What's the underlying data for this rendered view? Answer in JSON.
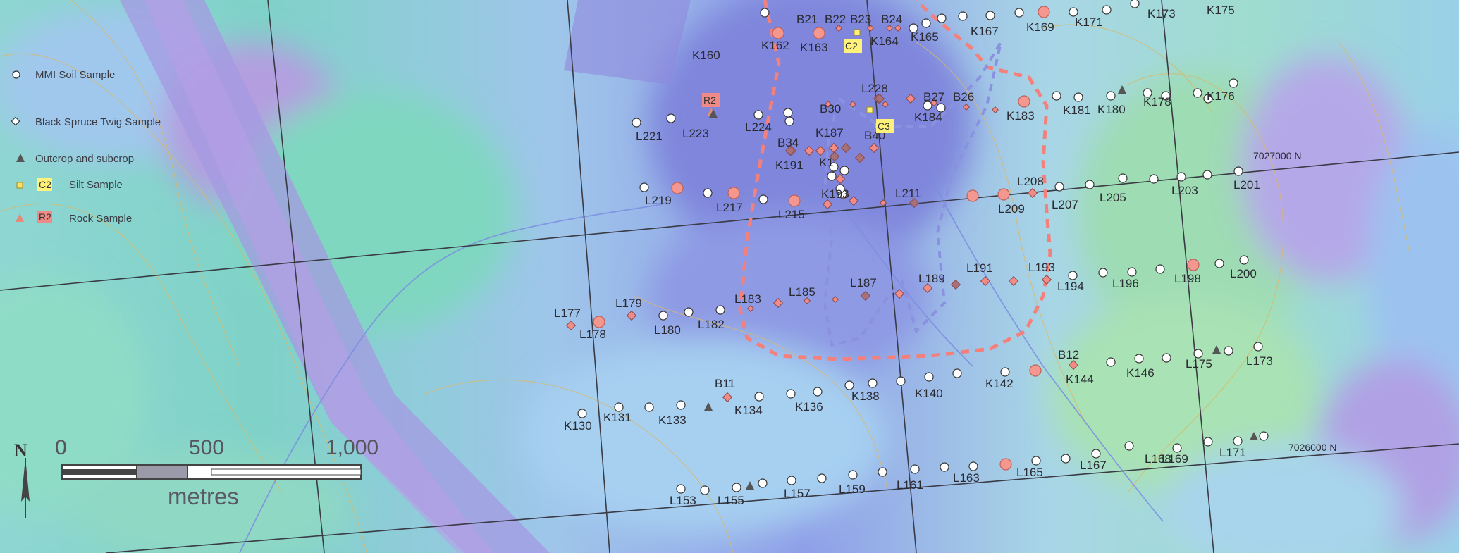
{
  "legend": {
    "items": [
      {
        "symbol": "open-circle",
        "label": "MMI Soil Sample"
      },
      {
        "symbol": "open-diamond",
        "label": "Black Spruce Twig Sample"
      },
      {
        "symbol": "triangle",
        "label": "Outcrop and subcrop"
      },
      {
        "symbol": "yellow-square",
        "tag": "C2",
        "label": "Silt Sample"
      },
      {
        "symbol": "red-triangle",
        "tag": "R2",
        "label": "Rock Sample"
      }
    ]
  },
  "scale_bar": {
    "north": "N",
    "ticks": [
      "0",
      "500",
      "1,000"
    ],
    "unit": "metres"
  },
  "grid_labels": {
    "northing_upper": "7027000 N",
    "northing_lower": "7026000 N"
  },
  "colors": {
    "soil_anomaly": "#f4978e",
    "twig_anomaly": "#f28b85",
    "twig_strong": "#a8717a",
    "anomaly_outline": "#f47c78",
    "inner_outline": "#8c96e6",
    "silt_fill": "#fff27a",
    "rock_fill": "#f08a86"
  },
  "labels": [
    "B21",
    "B22",
    "B23",
    "B24",
    "K160",
    "K162",
    "K163",
    "C2",
    "K164",
    "K165",
    "K167",
    "K169",
    "K171",
    "K173",
    "K175",
    "R2",
    "L221",
    "L223",
    "L224",
    "B30",
    "L228",
    "B27",
    "B26",
    "K184",
    "K183",
    "K181",
    "K180",
    "K178",
    "K176",
    "B34",
    "K187",
    "B40",
    "C3",
    "K191",
    "K1",
    "K193",
    "7027000 N",
    "L219",
    "L217",
    "L215",
    "L211",
    "L209",
    "L208",
    "L207",
    "L205",
    "L203",
    "L201",
    "L177",
    "L178",
    "L179",
    "L180",
    "L182",
    "L183",
    "L185",
    "L187",
    "L189",
    "L191",
    "L193",
    "L194",
    "L196",
    "L198",
    "L200",
    "B12",
    "K142",
    "K144",
    "K146",
    "L175",
    "L173",
    "B11",
    "K130",
    "K131",
    "K133",
    "K134",
    "K136",
    "K138",
    "K140",
    "7026000 N",
    "L153",
    "L155",
    "L157",
    "L159",
    "L161",
    "L163",
    "L165",
    "L167",
    "L168",
    "L169",
    "L171"
  ]
}
